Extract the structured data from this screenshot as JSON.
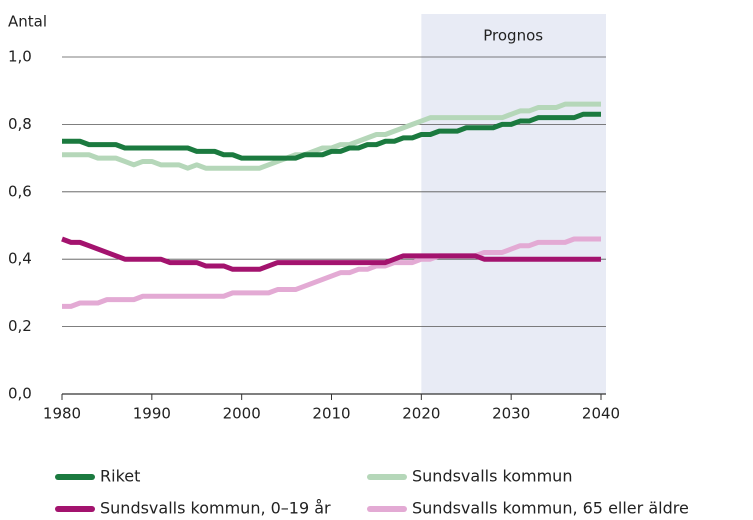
{
  "chart_data": {
    "type": "line",
    "ylabel": "Antal",
    "forecast": {
      "label": "Prognos",
      "from": 2020,
      "to": 2040,
      "color": "#e8ebf5"
    },
    "x": [
      1980,
      1981,
      1982,
      1983,
      1984,
      1985,
      1986,
      1987,
      1988,
      1989,
      1990,
      1991,
      1992,
      1993,
      1994,
      1995,
      1996,
      1997,
      1998,
      1999,
      2000,
      2001,
      2002,
      2003,
      2004,
      2005,
      2006,
      2007,
      2008,
      2009,
      2010,
      2011,
      2012,
      2013,
      2014,
      2015,
      2016,
      2017,
      2018,
      2019,
      2020,
      2021,
      2022,
      2023,
      2024,
      2025,
      2026,
      2027,
      2028,
      2029,
      2030,
      2031,
      2032,
      2033,
      2034,
      2035,
      2036,
      2037,
      2038,
      2039,
      2040
    ],
    "xlim": [
      1980,
      2040
    ],
    "xticks": [
      1980,
      1990,
      2000,
      2010,
      2020,
      2030,
      2040
    ],
    "ylim": [
      0,
      1
    ],
    "yticks": [
      {
        "value": 0,
        "label": "0,0"
      },
      {
        "value": 0.2,
        "label": "0,2"
      },
      {
        "value": 0.4,
        "label": "0,4"
      },
      {
        "value": 0.6,
        "label": "0,6"
      },
      {
        "value": 0.8,
        "label": "0,8"
      },
      {
        "value": 1,
        "label": "1,0"
      }
    ],
    "grid": true,
    "series": [
      {
        "name": "Riket",
        "color": "#1b7a3f",
        "values": [
          0.75,
          0.75,
          0.75,
          0.74,
          0.74,
          0.74,
          0.74,
          0.73,
          0.73,
          0.73,
          0.73,
          0.73,
          0.73,
          0.73,
          0.73,
          0.72,
          0.72,
          0.72,
          0.71,
          0.71,
          0.7,
          0.7,
          0.7,
          0.7,
          0.7,
          0.7,
          0.7,
          0.71,
          0.71,
          0.71,
          0.72,
          0.72,
          0.73,
          0.73,
          0.74,
          0.74,
          0.75,
          0.75,
          0.76,
          0.76,
          0.77,
          0.77,
          0.78,
          0.78,
          0.78,
          0.79,
          0.79,
          0.79,
          0.79,
          0.8,
          0.8,
          0.81,
          0.81,
          0.82,
          0.82,
          0.82,
          0.82,
          0.82,
          0.83,
          0.83,
          0.83
        ]
      },
      {
        "name": "Sundsvalls kommun",
        "color": "#b5d7b9",
        "values": [
          0.71,
          0.71,
          0.71,
          0.71,
          0.7,
          0.7,
          0.7,
          0.69,
          0.68,
          0.69,
          0.69,
          0.68,
          0.68,
          0.68,
          0.67,
          0.68,
          0.67,
          0.67,
          0.67,
          0.67,
          0.67,
          0.67,
          0.67,
          0.68,
          0.69,
          0.7,
          0.71,
          0.71,
          0.72,
          0.73,
          0.73,
          0.74,
          0.74,
          0.75,
          0.76,
          0.77,
          0.77,
          0.78,
          0.79,
          0.8,
          0.81,
          0.82,
          0.82,
          0.82,
          0.82,
          0.82,
          0.82,
          0.82,
          0.82,
          0.82,
          0.83,
          0.84,
          0.84,
          0.85,
          0.85,
          0.85,
          0.86,
          0.86,
          0.86,
          0.86,
          0.86
        ]
      },
      {
        "name": "Sundsvalls kommun, 0–19 år",
        "color": "#a3136e",
        "values": [
          0.46,
          0.45,
          0.45,
          0.44,
          0.43,
          0.42,
          0.41,
          0.4,
          0.4,
          0.4,
          0.4,
          0.4,
          0.39,
          0.39,
          0.39,
          0.39,
          0.38,
          0.38,
          0.38,
          0.37,
          0.37,
          0.37,
          0.37,
          0.38,
          0.39,
          0.39,
          0.39,
          0.39,
          0.39,
          0.39,
          0.39,
          0.39,
          0.39,
          0.39,
          0.39,
          0.39,
          0.39,
          0.4,
          0.41,
          0.41,
          0.41,
          0.41,
          0.41,
          0.41,
          0.41,
          0.41,
          0.41,
          0.4,
          0.4,
          0.4,
          0.4,
          0.4,
          0.4,
          0.4,
          0.4,
          0.4,
          0.4,
          0.4,
          0.4,
          0.4,
          0.4
        ]
      },
      {
        "name": "Sundsvalls kommun, 65 eller äldre",
        "color": "#e3aad4",
        "values": [
          0.26,
          0.26,
          0.27,
          0.27,
          0.27,
          0.28,
          0.28,
          0.28,
          0.28,
          0.29,
          0.29,
          0.29,
          0.29,
          0.29,
          0.29,
          0.29,
          0.29,
          0.29,
          0.29,
          0.3,
          0.3,
          0.3,
          0.3,
          0.3,
          0.31,
          0.31,
          0.31,
          0.32,
          0.33,
          0.34,
          0.35,
          0.36,
          0.36,
          0.37,
          0.37,
          0.38,
          0.38,
          0.39,
          0.39,
          0.39,
          0.4,
          0.4,
          0.41,
          0.41,
          0.41,
          0.41,
          0.41,
          0.42,
          0.42,
          0.42,
          0.43,
          0.44,
          0.44,
          0.45,
          0.45,
          0.45,
          0.45,
          0.46,
          0.46,
          0.46,
          0.46
        ]
      }
    ]
  }
}
